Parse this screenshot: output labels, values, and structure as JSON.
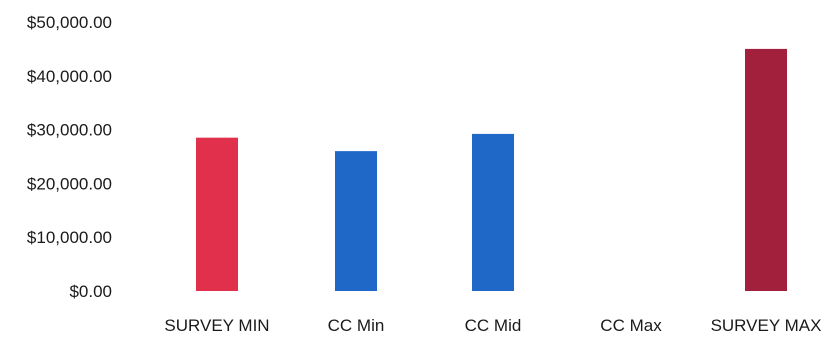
{
  "chart_data": {
    "type": "bar",
    "categories": [
      "SURVEY MIN",
      "CC Min",
      "CC Mid",
      "CC Max",
      "SURVEY MAX"
    ],
    "values": [
      28500,
      26000,
      29200,
      0,
      45000
    ],
    "colors": [
      "#e0304c",
      "#1f68c8",
      "#1f68c8",
      "#1f68c8",
      "#a3203c"
    ],
    "ylim": [
      0,
      50000
    ],
    "y_ticks": [
      0,
      10000,
      20000,
      30000,
      40000,
      50000
    ],
    "y_tick_labels": [
      "$0.00",
      "$10,000.00",
      "$20,000.00",
      "$30,000.00",
      "$40,000.00",
      "$50,000.00"
    ],
    "grid": false,
    "legend": "none"
  }
}
